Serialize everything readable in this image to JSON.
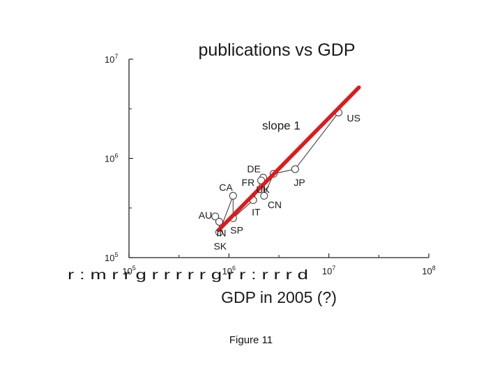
{
  "chart_data": {
    "type": "scatter",
    "title": "publications vs GDP",
    "xlabel": "GDP in 2005 (?)",
    "ylabel": "",
    "xscale": "log",
    "yscale": "log",
    "xlim": [
      100000,
      100000000
    ],
    "ylim": [
      100000,
      10000000
    ],
    "x_ticks": [
      {
        "base": "10",
        "exp": "5",
        "value": 100000
      },
      {
        "base": "10",
        "exp": "6",
        "value": 1000000
      },
      {
        "base": "10",
        "exp": "7",
        "value": 10000000
      },
      {
        "base": "10",
        "exp": "8",
        "value": 100000000
      }
    ],
    "y_ticks": [
      {
        "base": "10",
        "exp": "5",
        "value": 100000
      },
      {
        "base": "10",
        "exp": "6",
        "value": 1000000
      },
      {
        "base": "10",
        "exp": "7",
        "value": 10000000
      }
    ],
    "points": [
      {
        "label": "US",
        "x": 12500000,
        "y": 2900000
      },
      {
        "label": "JP",
        "x": 4600000,
        "y": 780000
      },
      {
        "label": "DE",
        "x": 2800000,
        "y": 700000
      },
      {
        "label": "UK",
        "x": 2200000,
        "y": 640000
      },
      {
        "label": "FR",
        "x": 2100000,
        "y": 600000
      },
      {
        "label": "CN",
        "x": 2250000,
        "y": 420000
      },
      {
        "label": "CA",
        "x": 1100000,
        "y": 420000
      },
      {
        "label": "IT",
        "x": 1750000,
        "y": 380000
      },
      {
        "label": "AU",
        "x": 730000,
        "y": 260000
      },
      {
        "label": "SP",
        "x": 1100000,
        "y": 250000
      },
      {
        "label": "IN",
        "x": 800000,
        "y": 230000
      },
      {
        "label": "SK",
        "x": 800000,
        "y": 180000
      }
    ],
    "fit_line": {
      "x": [
        790000,
        20000000
      ],
      "y": [
        190000,
        5200000
      ]
    },
    "fit_line_color": "#e0191b",
    "annotation": "slope 1",
    "scan_artifact_text": "r : m r r g r r r r r g r r : r r r d"
  },
  "caption": "Figure 11"
}
